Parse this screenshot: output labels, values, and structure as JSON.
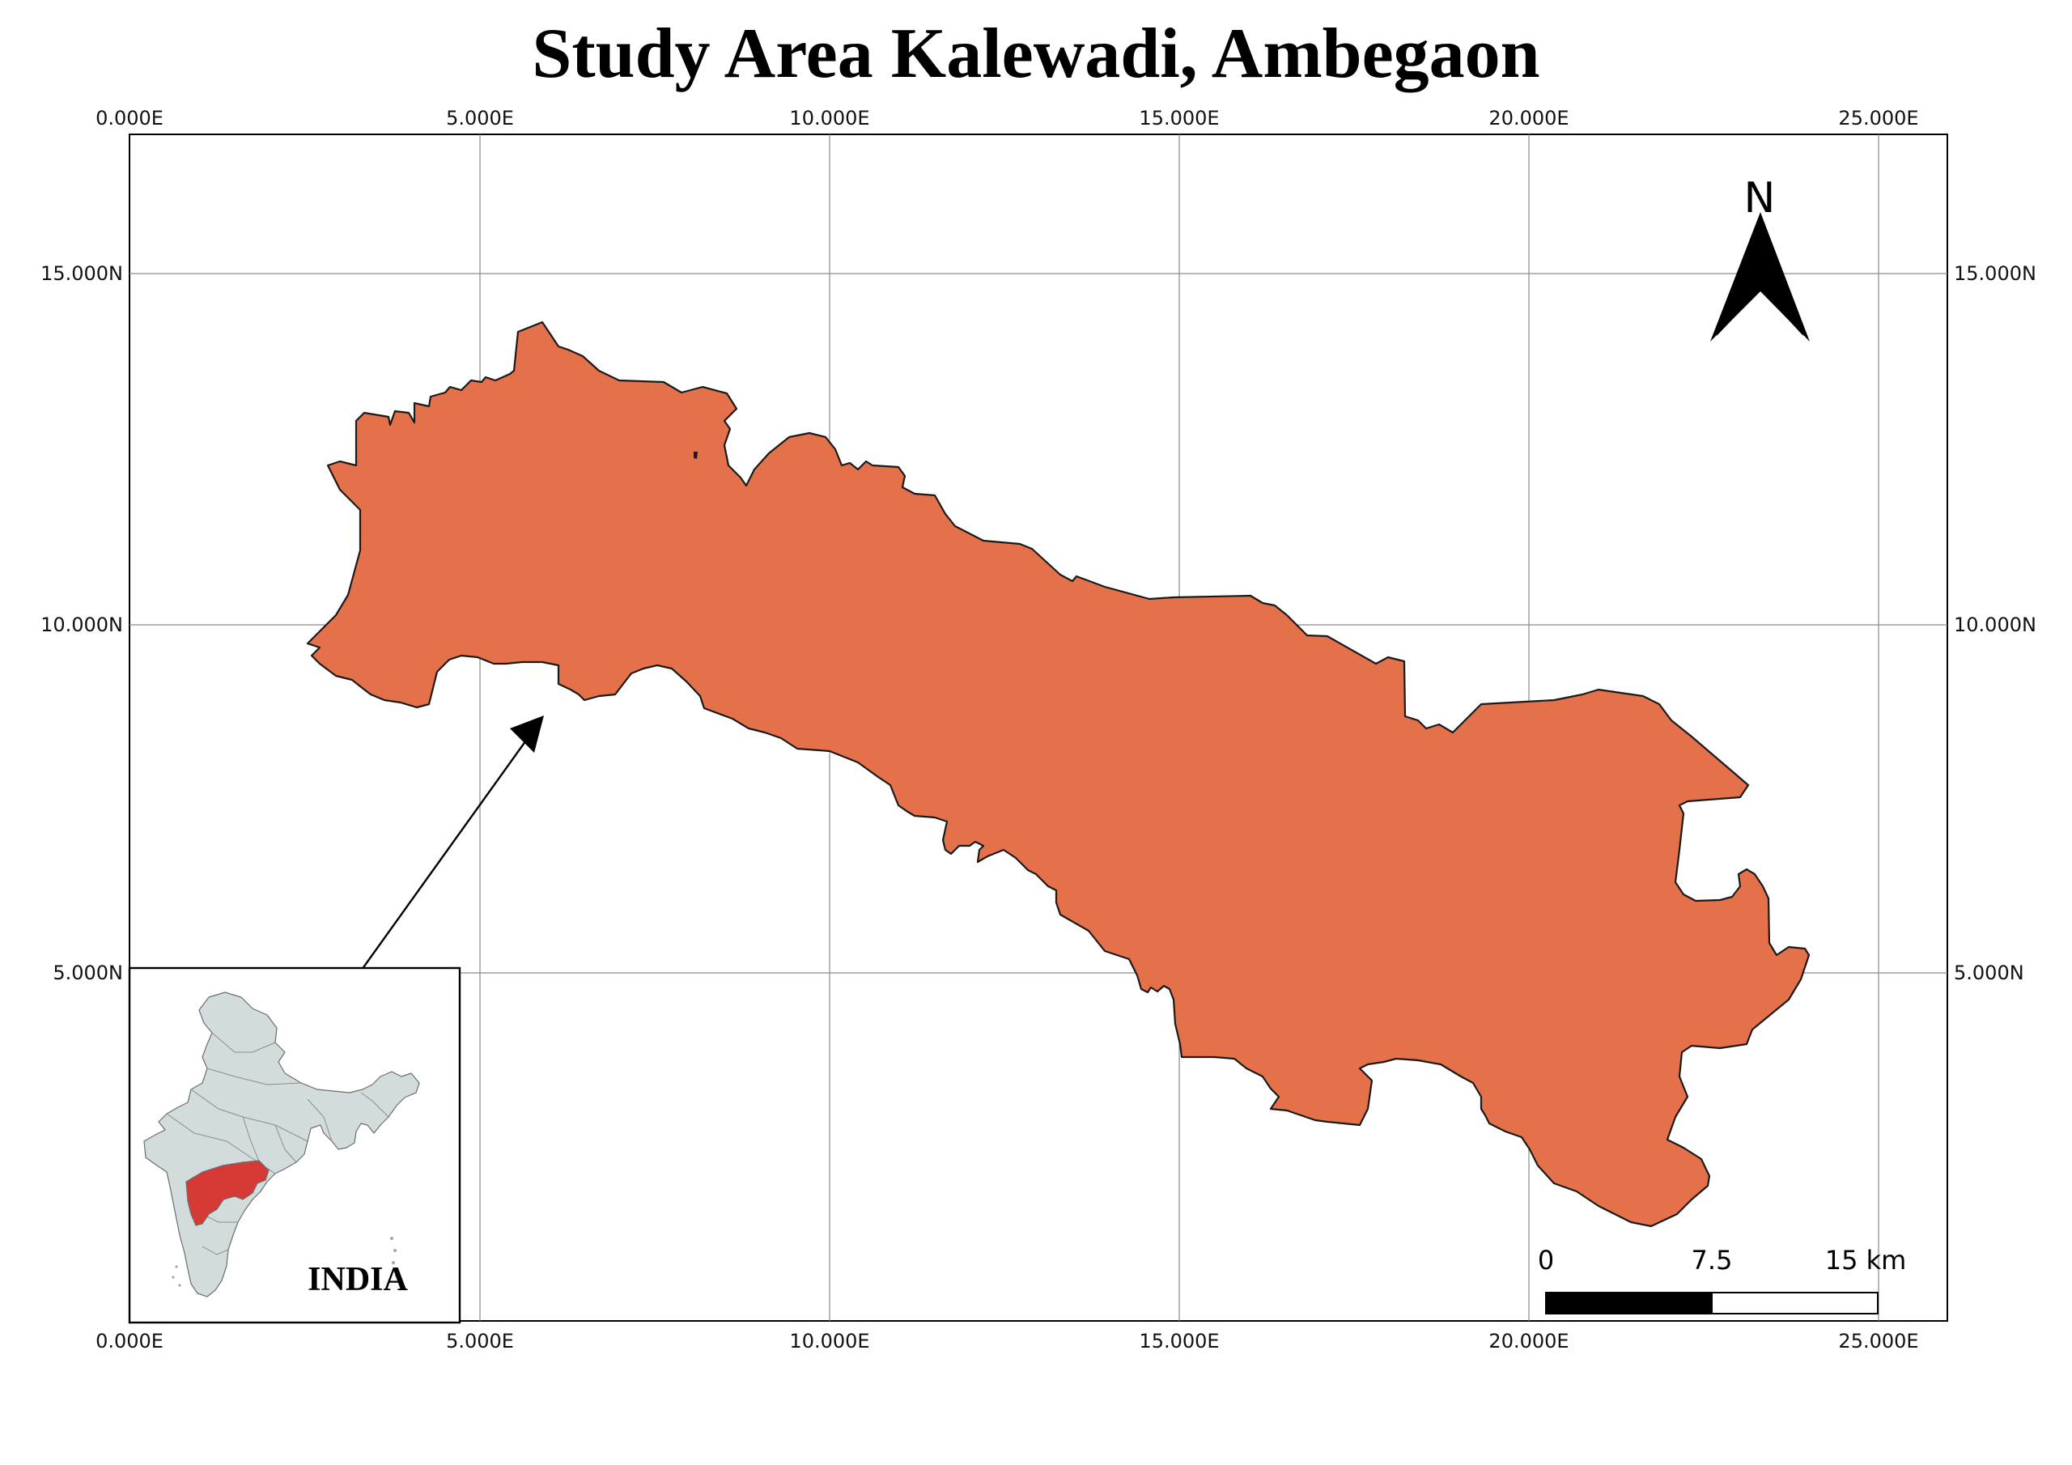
{
  "title": "Study Area Kalewadi, Ambegaon",
  "axes": {
    "x_ticks": [
      "0.000E",
      "5.000E",
      "10.000E",
      "15.000E",
      "20.000E",
      "25.000E"
    ],
    "y_ticks": [
      "15.000N",
      "10.000N",
      "5.000N"
    ]
  },
  "north_arrow": {
    "label": "N",
    "icon": "north-arrow-icon"
  },
  "scale_bar": {
    "labels": [
      "0",
      "7.5",
      "15 km"
    ]
  },
  "inset": {
    "label": "INDIA",
    "highlight_color": "#d63a35",
    "land_color": "#d3dcdc"
  },
  "colors": {
    "study_area_fill": "#e5714a",
    "outline": "#1a1a1a"
  }
}
